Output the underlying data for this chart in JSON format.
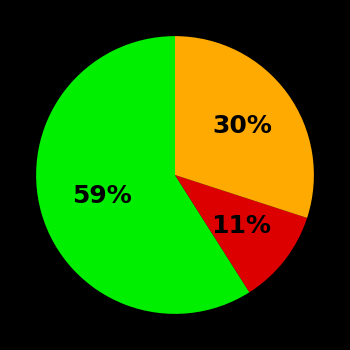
{
  "values": [
    59,
    11,
    30
  ],
  "colors": [
    "#00ee00",
    "#dd0000",
    "#ffaa00"
  ],
  "labels": [
    "59%",
    "11%",
    "30%"
  ],
  "background_color": "#000000",
  "text_color": "#000000",
  "startangle": 90,
  "label_fontsize": 18,
  "label_fontweight": "bold",
  "label_r": [
    0.55,
    0.6,
    0.6
  ]
}
